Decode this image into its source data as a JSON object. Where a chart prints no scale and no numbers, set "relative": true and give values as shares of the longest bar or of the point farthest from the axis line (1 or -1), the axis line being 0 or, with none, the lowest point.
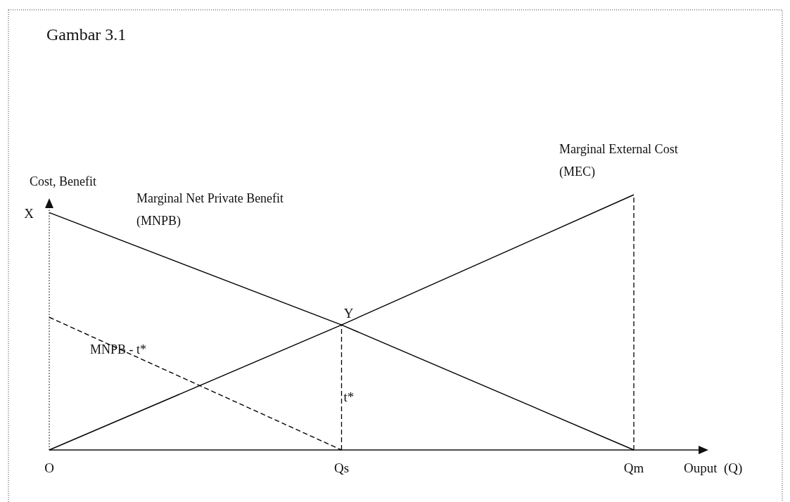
{
  "chart_data": {
    "type": "line",
    "title": "Gambar 3.1",
    "xlabel": "Ouput  (Q)",
    "ylabel": "Cost, Benefit",
    "relative": true,
    "categories": [
      "O",
      "Qs",
      "Qm"
    ],
    "marker": "none",
    "series": [
      {
        "name": "Marginal Net Private Benefit (MNPB)",
        "color": "#000000",
        "line_style": "solid",
        "values": [
          0.93,
          0.49,
          0
        ]
      },
      {
        "name": "Marginal External Cost (MEC)",
        "color": "#000000",
        "line_style": "solid",
        "values": [
          0,
          0.49,
          1
        ]
      },
      {
        "name": "MNPB - t*",
        "color": "#000000",
        "line_style": "dashed",
        "values": [
          0.52,
          0,
          null
        ]
      }
    ],
    "ref_lines": [
      {
        "axis": "x",
        "value": "Qs",
        "label": "t*",
        "line_style": "dashed",
        "color": "#000000"
      },
      {
        "axis": "x",
        "value": "Qm",
        "line_style": "dashed",
        "color": "#000000"
      }
    ],
    "annotations": [
      {
        "text": "X",
        "x": "O",
        "y": 0.93
      },
      {
        "text": "Y",
        "x": "Qs",
        "y": 0.49
      }
    ]
  }
}
